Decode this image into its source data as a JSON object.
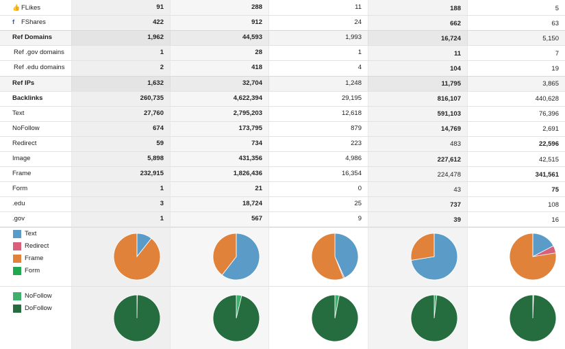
{
  "rows": [
    {
      "label": "FLikes",
      "bold": false,
      "icon": "thumbs-up-icon",
      "values": [
        "91",
        "288",
        "11",
        "188",
        "5"
      ],
      "bold_cols": [
        0,
        1,
        3
      ]
    },
    {
      "label": "FShares",
      "bold": false,
      "icon": "facebook-icon",
      "values": [
        "422",
        "912",
        "24",
        "662",
        "63"
      ],
      "bold_cols": [
        0,
        1,
        3
      ]
    },
    {
      "label": "Ref Domains",
      "bold": true,
      "values": [
        "1,962",
        "44,593",
        "1,993",
        "16,724",
        "5,150"
      ],
      "bold_cols": [
        0,
        1,
        3
      ]
    },
    {
      "label": "Ref .gov domains",
      "bold": false,
      "indent": true,
      "values": [
        "1",
        "28",
        "1",
        "11",
        "7"
      ],
      "bold_cols": [
        0,
        1,
        3
      ]
    },
    {
      "label": "Ref .edu domains",
      "bold": false,
      "indent": true,
      "values": [
        "2",
        "418",
        "4",
        "104",
        "19"
      ],
      "bold_cols": [
        0,
        1,
        3
      ]
    },
    {
      "label": "Ref IPs",
      "bold": true,
      "values": [
        "1,632",
        "32,704",
        "1,248",
        "11,795",
        "3,865"
      ],
      "bold_cols": [
        0,
        1,
        3
      ]
    },
    {
      "label": "Backlinks",
      "bold": true,
      "values": [
        "260,735",
        "4,622,394",
        "29,195",
        "816,107",
        "440,628"
      ],
      "bold_cols": [
        0,
        1,
        3
      ]
    },
    {
      "label": "Text",
      "bold": false,
      "values": [
        "27,760",
        "2,795,203",
        "12,618",
        "591,103",
        "76,396"
      ],
      "bold_cols": [
        0,
        1,
        3
      ]
    },
    {
      "label": "NoFollow",
      "bold": false,
      "values": [
        "674",
        "173,795",
        "879",
        "14,769",
        "2,691"
      ],
      "bold_cols": [
        0,
        1,
        3
      ]
    },
    {
      "label": "Redirect",
      "bold": false,
      "values": [
        "59",
        "734",
        "223",
        "483",
        "22,596"
      ],
      "bold_cols": [
        0,
        1,
        4
      ]
    },
    {
      "label": "Image",
      "bold": false,
      "values": [
        "5,898",
        "431,356",
        "4,986",
        "227,612",
        "42,515"
      ],
      "bold_cols": [
        0,
        1,
        3
      ]
    },
    {
      "label": "Frame",
      "bold": false,
      "values": [
        "232,915",
        "1,826,436",
        "16,354",
        "224,478",
        "341,561"
      ],
      "bold_cols": [
        0,
        1,
        4
      ]
    },
    {
      "label": "Form",
      "bold": false,
      "values": [
        "1",
        "21",
        "0",
        "43",
        "75"
      ],
      "bold_cols": [
        0,
        1,
        4
      ]
    },
    {
      "label": ".edu",
      "bold": false,
      "values": [
        "3",
        "18,724",
        "25",
        "737",
        "108"
      ],
      "bold_cols": [
        0,
        1,
        3
      ]
    },
    {
      "label": ".gov",
      "bold": false,
      "values": [
        "1",
        "567",
        "9",
        "39",
        "16"
      ],
      "bold_cols": [
        0,
        1,
        3
      ]
    }
  ],
  "legend_types": [
    {
      "label": "Text",
      "color": "#5b9bc8"
    },
    {
      "label": "Redirect",
      "color": "#d9607a"
    },
    {
      "label": "Frame",
      "color": "#e0823a"
    },
    {
      "label": "Form",
      "color": "#1fa84f"
    }
  ],
  "legend_follow": [
    {
      "label": "NoFollow",
      "color": "#3faf6c"
    },
    {
      "label": "DoFollow",
      "color": "#256c3f"
    }
  ],
  "colors": {
    "Text": "#5b9bc8",
    "Redirect": "#d9607a",
    "Frame": "#e0823a",
    "Form": "#1fa84f",
    "NoFollow": "#3faf6c",
    "DoFollow": "#256c3f"
  },
  "pie_types": [
    {
      "Text": 27760,
      "Redirect": 59,
      "Frame": 232915,
      "Form": 1
    },
    {
      "Text": 2795203,
      "Redirect": 734,
      "Frame": 1826436,
      "Form": 21
    },
    {
      "Text": 12618,
      "Redirect": 223,
      "Frame": 16354,
      "Form": 0
    },
    {
      "Text": 591103,
      "Redirect": 483,
      "Frame": 224478,
      "Form": 43
    },
    {
      "Text": 76396,
      "Redirect": 22596,
      "Frame": 341561,
      "Form": 75
    }
  ],
  "pie_follow": [
    {
      "NoFollow": 674,
      "DoFollow": 260061
    },
    {
      "NoFollow": 173795,
      "DoFollow": 4448599
    },
    {
      "NoFollow": 879,
      "DoFollow": 28316
    },
    {
      "NoFollow": 14769,
      "DoFollow": 801338
    },
    {
      "NoFollow": 2691,
      "DoFollow": 437937
    }
  ]
}
